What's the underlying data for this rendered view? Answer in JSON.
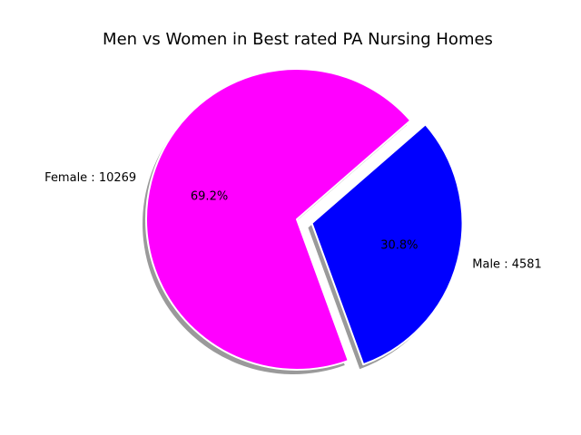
{
  "chart_data": {
    "type": "pie",
    "title": "Men vs Women in Best rated PA Nursing Homes",
    "slices": [
      {
        "label": "Male : 4581",
        "value": 4581,
        "percent_label": "30.8%",
        "color": "#0000ff",
        "exploded": true
      },
      {
        "label": "Female : 10269",
        "value": 10269,
        "percent_label": "69.2%",
        "color": "#ff00ff",
        "exploded": false
      }
    ],
    "shadow": true,
    "shadow_color": "#888888",
    "edge_color": "#ffffff",
    "start_angle_deg": 290,
    "direction": "counterclockwise"
  }
}
